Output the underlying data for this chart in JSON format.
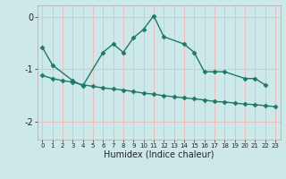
{
  "xlabel": "Humidex (Indice chaleur)",
  "series1": {
    "x": [
      0,
      1,
      3,
      4,
      6,
      7,
      8,
      9,
      10,
      11,
      12,
      14,
      15,
      16,
      17,
      18,
      20,
      21,
      22
    ],
    "y": [
      -0.58,
      -0.92,
      -1.22,
      -1.32,
      -0.68,
      -0.52,
      -0.68,
      -0.4,
      -0.24,
      0.02,
      -0.38,
      -0.52,
      -0.68,
      -1.05,
      -1.05,
      -1.05,
      -1.18,
      -1.18,
      -1.3
    ]
  },
  "series2": {
    "x": [
      0,
      1,
      2,
      3,
      4,
      5,
      6,
      7,
      8,
      9,
      10,
      11,
      12,
      13,
      14,
      15,
      16,
      17,
      18,
      19,
      20,
      21,
      22,
      23
    ],
    "y": [
      -1.12,
      -1.18,
      -1.22,
      -1.25,
      -1.3,
      -1.33,
      -1.36,
      -1.38,
      -1.4,
      -1.43,
      -1.46,
      -1.48,
      -1.51,
      -1.53,
      -1.55,
      -1.57,
      -1.59,
      -1.62,
      -1.63,
      -1.65,
      -1.67,
      -1.68,
      -1.7,
      -1.72
    ]
  },
  "line_color": "#1a7a6a",
  "bg_color": "#cce8e8",
  "grid_color": "#f0b8b8",
  "ylim": [
    -2.35,
    0.22
  ],
  "yticks": [
    0,
    -1,
    -2
  ],
  "xtick_labels": [
    "0",
    "1",
    "2",
    "3",
    "4",
    "5",
    "6",
    "7",
    "8",
    "9",
    "10",
    "11",
    "12",
    "13",
    "14",
    "15",
    "16",
    "17",
    "18",
    "19",
    "20",
    "21",
    "22",
    "23"
  ],
  "marker": "D",
  "markersize": 2.5,
  "linewidth": 1.0
}
